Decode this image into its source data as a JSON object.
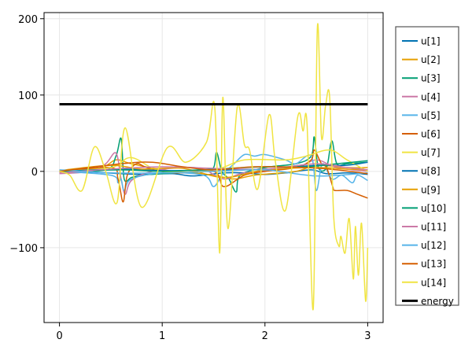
{
  "chart_data": {
    "type": "line",
    "title": "",
    "xlabel": "",
    "ylabel": "",
    "xlim": [
      -0.15,
      3.15
    ],
    "ylim": [
      -198,
      208
    ],
    "xticks": [
      "0",
      "1",
      "2",
      "3"
    ],
    "xtick_values": [
      0,
      1,
      2,
      3
    ],
    "yticks": [
      "200",
      "100",
      "0",
      "−100"
    ],
    "ytick_values": [
      200,
      100,
      0,
      -100
    ],
    "grid": true,
    "legend_position": "right",
    "series": [
      {
        "name": "u[1]",
        "color": "#0072b2",
        "points": [
          [
            0,
            0
          ],
          [
            0.3,
            -1
          ],
          [
            0.6,
            -3
          ],
          [
            0.8,
            -4
          ],
          [
            1.1,
            -3
          ],
          [
            1.3,
            -6
          ],
          [
            1.6,
            -2
          ],
          [
            1.8,
            -2
          ],
          [
            2.0,
            -4
          ],
          [
            2.2,
            -2
          ],
          [
            2.45,
            2
          ],
          [
            2.6,
            -3
          ],
          [
            2.8,
            -2
          ],
          [
            3,
            -4
          ]
        ]
      },
      {
        "name": "u[2]",
        "color": "#e69f00",
        "points": [
          [
            0,
            0
          ],
          [
            0.4,
            5
          ],
          [
            0.55,
            15
          ],
          [
            0.7,
            10
          ],
          [
            1,
            2
          ],
          [
            1.3,
            -2
          ],
          [
            1.5,
            -5
          ],
          [
            1.7,
            -10
          ],
          [
            1.9,
            -5
          ],
          [
            2.3,
            0
          ],
          [
            2.5,
            8
          ],
          [
            2.8,
            5
          ],
          [
            3,
            5
          ]
        ]
      },
      {
        "name": "u[3]",
        "color": "#009e73",
        "points": [
          [
            0,
            0
          ],
          [
            0.45,
            2
          ],
          [
            0.55,
            20
          ],
          [
            0.6,
            43
          ],
          [
            0.63,
            -10
          ],
          [
            0.7,
            -8
          ],
          [
            0.8,
            -5
          ],
          [
            1,
            -3
          ],
          [
            1.4,
            0
          ],
          [
            1.5,
            5
          ],
          [
            1.53,
            25
          ],
          [
            1.58,
            0
          ],
          [
            1.65,
            -10
          ],
          [
            1.72,
            -27
          ],
          [
            1.76,
            -5
          ],
          [
            2.0,
            5
          ],
          [
            2.3,
            10
          ],
          [
            2.45,
            20
          ],
          [
            2.48,
            45
          ],
          [
            2.52,
            5
          ],
          [
            2.6,
            5
          ],
          [
            2.65,
            40
          ],
          [
            2.7,
            10
          ],
          [
            2.8,
            10
          ],
          [
            3,
            12
          ]
        ]
      },
      {
        "name": "u[4]",
        "color": "#cc79a7",
        "points": [
          [
            0,
            -3
          ],
          [
            0.3,
            0
          ],
          [
            0.45,
            10
          ],
          [
            0.55,
            24
          ],
          [
            0.6,
            -10
          ],
          [
            0.64,
            -30
          ],
          [
            0.7,
            -12
          ],
          [
            0.9,
            0
          ],
          [
            1.2,
            5
          ],
          [
            1.4,
            3
          ],
          [
            1.6,
            -10
          ],
          [
            1.8,
            -2
          ],
          [
            2.3,
            5
          ],
          [
            2.5,
            15
          ],
          [
            2.7,
            5
          ],
          [
            3,
            0
          ]
        ]
      },
      {
        "name": "u[5]",
        "color": "#56b4e9",
        "points": [
          [
            0,
            0
          ],
          [
            0.5,
            -5
          ],
          [
            0.57,
            -15
          ],
          [
            0.6,
            -10
          ],
          [
            0.63,
            -25
          ],
          [
            0.7,
            -10
          ],
          [
            1,
            -2
          ],
          [
            1.4,
            -5
          ],
          [
            1.5,
            -20
          ],
          [
            1.58,
            -5
          ],
          [
            1.7,
            10
          ],
          [
            1.8,
            22
          ],
          [
            1.9,
            20
          ],
          [
            2.0,
            22
          ],
          [
            2.2,
            15
          ],
          [
            2.3,
            10
          ],
          [
            2.45,
            20
          ],
          [
            2.5,
            -25
          ],
          [
            2.56,
            10
          ],
          [
            2.65,
            -10
          ],
          [
            2.75,
            -5
          ],
          [
            2.85,
            -15
          ],
          [
            2.9,
            -5
          ],
          [
            3,
            -12
          ]
        ]
      },
      {
        "name": "u[6]",
        "color": "#d55e00",
        "points": [
          [
            0,
            0
          ],
          [
            0.5,
            5
          ],
          [
            0.57,
            -10
          ],
          [
            0.62,
            -40
          ],
          [
            0.66,
            -5
          ],
          [
            0.75,
            10
          ],
          [
            0.85,
            5
          ],
          [
            1.1,
            -2
          ],
          [
            1.5,
            0
          ],
          [
            1.6,
            -20
          ],
          [
            1.8,
            -5
          ],
          [
            2,
            0
          ],
          [
            2.3,
            5
          ],
          [
            2.45,
            15
          ],
          [
            2.48,
            28
          ],
          [
            2.55,
            10
          ],
          [
            2.6,
            5
          ],
          [
            2.66,
            -20
          ],
          [
            2.68,
            -25
          ],
          [
            2.8,
            -25
          ],
          [
            2.9,
            -30
          ],
          [
            3,
            -35
          ]
        ]
      },
      {
        "name": "u[7]",
        "color": "#f0e442",
        "points": [
          [
            0,
            0
          ],
          [
            0.5,
            5
          ],
          [
            0.7,
            18
          ],
          [
            1.0,
            0
          ],
          [
            1.5,
            2
          ],
          [
            1.8,
            15
          ],
          [
            2.2,
            15
          ],
          [
            2.4,
            20
          ],
          [
            2.63,
            28
          ],
          [
            2.8,
            15
          ],
          [
            3,
            0
          ]
        ]
      },
      {
        "name": "u[8]",
        "color": "#0072b2",
        "points": [
          [
            0,
            0
          ],
          [
            0.6,
            3
          ],
          [
            1.0,
            1
          ],
          [
            1.5,
            2
          ],
          [
            2.0,
            3
          ],
          [
            2.5,
            8
          ],
          [
            2.8,
            8
          ],
          [
            3,
            12
          ]
        ]
      },
      {
        "name": "u[9]",
        "color": "#e69f00",
        "points": [
          [
            0,
            1
          ],
          [
            0.5,
            8
          ],
          [
            0.8,
            3
          ],
          [
            1.2,
            4
          ],
          [
            1.6,
            -8
          ],
          [
            2.0,
            2
          ],
          [
            2.5,
            5
          ],
          [
            2.8,
            3
          ],
          [
            3,
            2
          ]
        ]
      },
      {
        "name": "u[10]",
        "color": "#009e73",
        "points": [
          [
            0,
            0
          ],
          [
            0.6,
            2
          ],
          [
            1.0,
            0
          ],
          [
            1.5,
            3
          ],
          [
            2.0,
            6
          ],
          [
            2.4,
            6
          ],
          [
            2.7,
            10
          ],
          [
            3,
            14
          ]
        ]
      },
      {
        "name": "u[11]",
        "color": "#cc79a7",
        "points": [
          [
            0,
            -2
          ],
          [
            0.5,
            3
          ],
          [
            1.0,
            6
          ],
          [
            1.5,
            4
          ],
          [
            2.0,
            3
          ],
          [
            2.5,
            10
          ],
          [
            2.8,
            5
          ],
          [
            3,
            2
          ]
        ]
      },
      {
        "name": "u[12]",
        "color": "#56b4e9",
        "points": [
          [
            0,
            2
          ],
          [
            0.5,
            -2
          ],
          [
            1.0,
            -2
          ],
          [
            1.5,
            0
          ],
          [
            2.0,
            2
          ],
          [
            2.5,
            -6
          ],
          [
            3,
            -2
          ]
        ]
      },
      {
        "name": "u[13]",
        "color": "#d55e00",
        "points": [
          [
            0,
            0
          ],
          [
            0.6,
            10
          ],
          [
            0.9,
            12
          ],
          [
            1.2,
            6
          ],
          [
            1.5,
            2
          ],
          [
            1.9,
            6
          ],
          [
            2.4,
            5
          ],
          [
            2.7,
            2
          ],
          [
            3,
            -3
          ]
        ]
      },
      {
        "name": "u[14]",
        "color": "#f0e442",
        "points": [
          [
            0,
            0
          ],
          [
            0.1,
            -5
          ],
          [
            0.22,
            -25
          ],
          [
            0.34,
            32
          ],
          [
            0.45,
            0
          ],
          [
            0.56,
            -41
          ],
          [
            0.64,
            57
          ],
          [
            0.8,
            -47
          ],
          [
            1.05,
            31
          ],
          [
            1.23,
            12
          ],
          [
            1.43,
            38
          ],
          [
            1.51,
            86
          ],
          [
            1.56,
            -107
          ],
          [
            1.59,
            97
          ],
          [
            1.64,
            -75
          ],
          [
            1.73,
            84
          ],
          [
            1.8,
            35
          ],
          [
            1.85,
            28
          ],
          [
            1.93,
            -23
          ],
          [
            2.04,
            74
          ],
          [
            2.1,
            14
          ],
          [
            2.2,
            -51
          ],
          [
            2.32,
            72
          ],
          [
            2.37,
            53
          ],
          [
            2.41,
            61
          ],
          [
            2.47,
            -180
          ],
          [
            2.51,
            188
          ],
          [
            2.55,
            45
          ],
          [
            2.59,
            86
          ],
          [
            2.63,
            97
          ],
          [
            2.67,
            -61
          ],
          [
            2.72,
            -98
          ],
          [
            2.74,
            -85
          ],
          [
            2.78,
            -107
          ],
          [
            2.82,
            -62
          ],
          [
            2.86,
            -141
          ],
          [
            2.88,
            -72
          ],
          [
            2.91,
            -136
          ],
          [
            2.94,
            -68
          ],
          [
            2.98,
            -170
          ],
          [
            3.0,
            -100
          ]
        ]
      },
      {
        "name": "energy",
        "color": "#000000",
        "points": [
          [
            0,
            88
          ],
          [
            3,
            88
          ]
        ]
      }
    ]
  }
}
